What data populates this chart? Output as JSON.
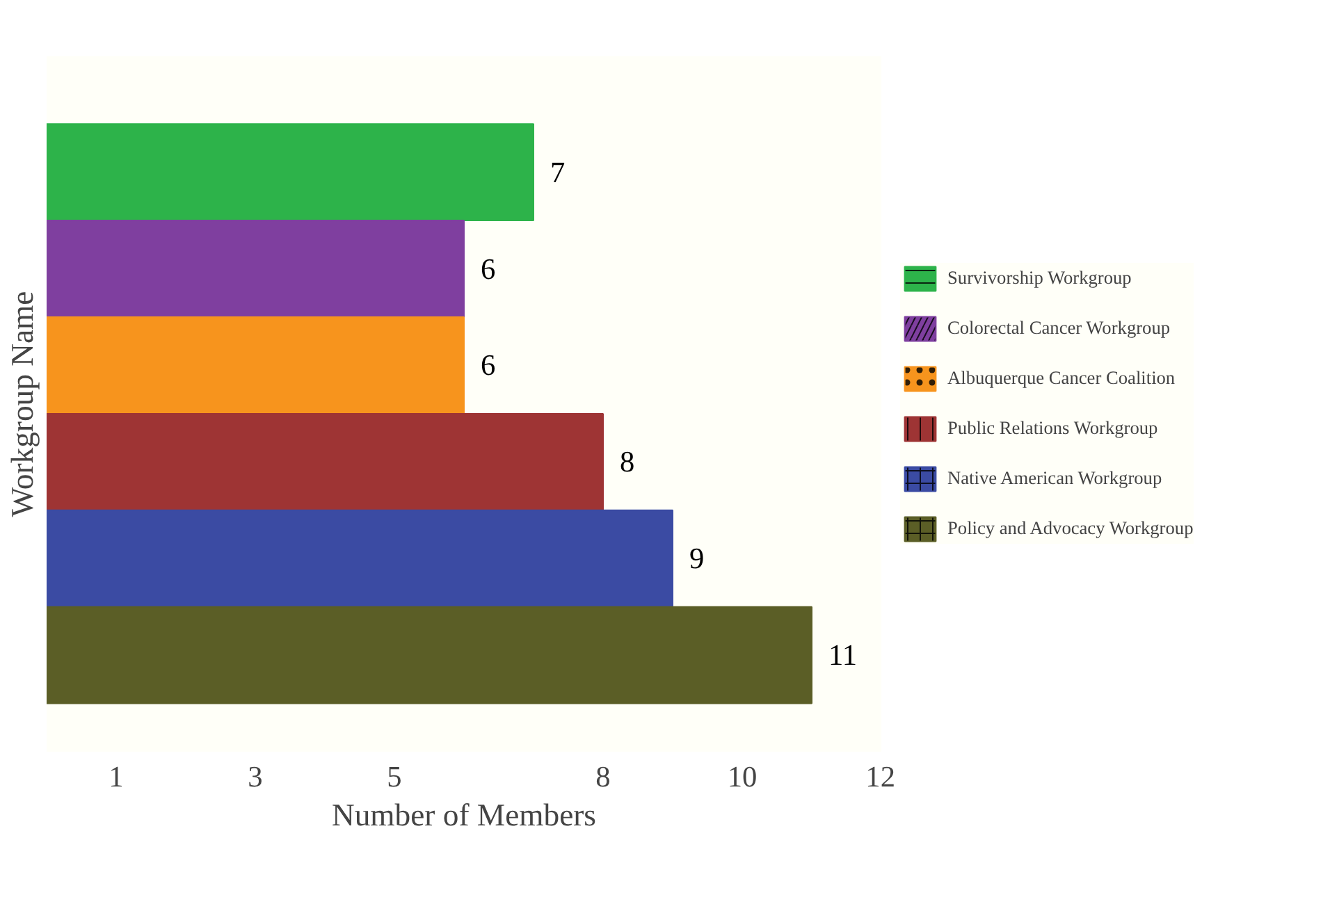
{
  "chart_data": {
    "type": "bar",
    "orientation": "horizontal",
    "stacked": true,
    "xlabel": "Number of Members",
    "ylabel": "Workgroup Name",
    "categories": [
      null,
      null,
      null,
      null,
      null,
      null
    ],
    "series": [
      {
        "name": "Survivorship Workgroup",
        "color": "#2db34a",
        "values": [
          7,
          null,
          null,
          null,
          null,
          null
        ]
      },
      {
        "name": "Colorectal Cancer Workgroup",
        "color": "#7f3f9f",
        "values": [
          null,
          6,
          null,
          null,
          null,
          null
        ]
      },
      {
        "name": "Albuquerque Cancer Coalition",
        "color": "#f7941d",
        "values": [
          null,
          null,
          6,
          null,
          null,
          null
        ]
      },
      {
        "name": "Public Relations Workgroup",
        "color": "#9e3434",
        "values": [
          null,
          null,
          null,
          8,
          null,
          null
        ]
      },
      {
        "name": "Native American Workgroup",
        "color": "#3b4ba3",
        "values": [
          null,
          null,
          null,
          null,
          9,
          null
        ]
      },
      {
        "name": "Policy and Advocacy Workgroup",
        "color": "#5b5e26",
        "values": [
          null,
          null,
          null,
          null,
          null,
          11
        ]
      }
    ],
    "xlim": [
      0,
      12
    ],
    "xticks": [
      1,
      3,
      5,
      8,
      10,
      12
    ],
    "tick_labels": "x",
    "data_labels": true,
    "legend": "right",
    "grid": false
  }
}
